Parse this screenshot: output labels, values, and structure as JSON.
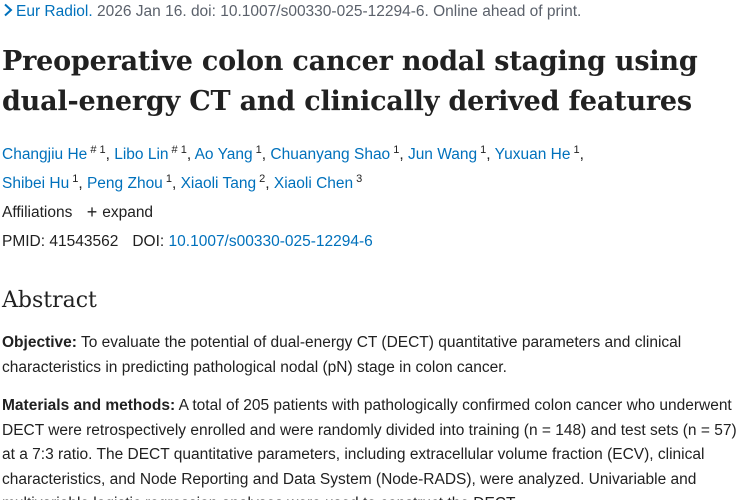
{
  "citation": {
    "journal": "Eur Radiol.",
    "details": "2026 Jan 16. doi: 10.1007/s00330-025-12294-6. Online ahead of print."
  },
  "title": "Preoperative colon cancer nodal staging using dual-energy CT and clinically derived features",
  "authors": [
    {
      "name": "Changjiu He",
      "sup": "# 1"
    },
    {
      "name": "Libo Lin",
      "sup": "# 1"
    },
    {
      "name": "Ao Yang",
      "sup": "1"
    },
    {
      "name": "Chuanyang Shao",
      "sup": "1"
    },
    {
      "name": "Jun Wang",
      "sup": "1"
    },
    {
      "name": "Yuxuan He",
      "sup": "1"
    },
    {
      "name": "Shibei Hu",
      "sup": "1"
    },
    {
      "name": "Peng Zhou",
      "sup": "1"
    },
    {
      "name": "Xiaoli Tang",
      "sup": "2"
    },
    {
      "name": "Xiaoli Chen",
      "sup": "3"
    }
  ],
  "affiliations": {
    "label": "Affiliations",
    "expand": "expand"
  },
  "ids": {
    "pmid_label": "PMID:",
    "pmid": "41543562",
    "doi_label": "DOI:",
    "doi": "10.1007/s00330-025-12294-6"
  },
  "abstract": {
    "heading": "Abstract",
    "objective_label": "Objective:",
    "objective_text": " To evaluate the potential of dual-energy CT (DECT) quantitative parameters and clinical characteristics in predicting pathological nodal (pN) stage in colon cancer.",
    "methods_label": "Materials and methods:",
    "methods_text": " A total of 205 patients with pathologically confirmed colon cancer who underwent DECT were retrospectively enrolled and were randomly divided into training (n = 148) and test sets (n = 57) at a 7:3 ratio. The DECT quantitative parameters, including extracellular volume fraction (ECV), clinical characteristics, and Node Reporting and Data System (Node-RADS), were analyzed. Univariable and multivariable logistic regression analyses were used to construct the DECT"
  },
  "colors": {
    "link": "#0071bc",
    "text": "#212121",
    "muted": "#5b616b"
  }
}
